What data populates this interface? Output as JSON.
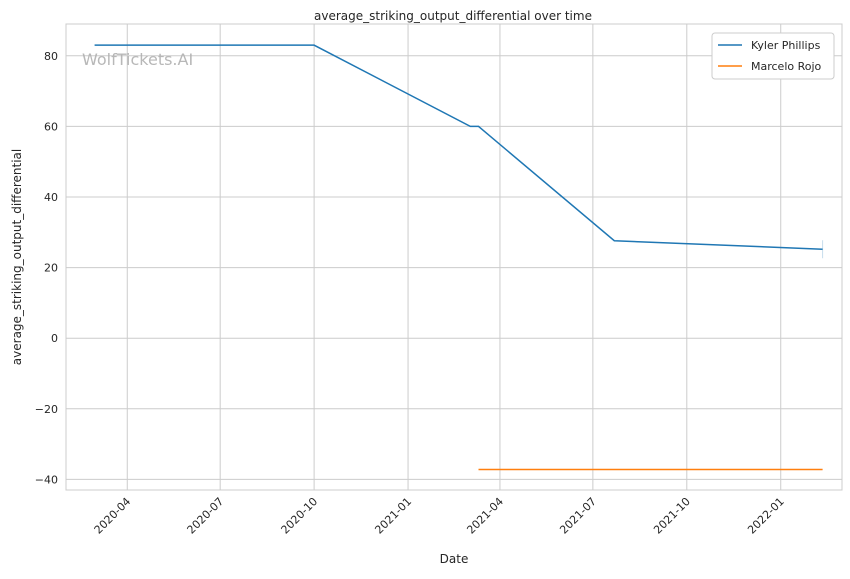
{
  "chart_data": {
    "type": "line",
    "title": "average_striking_output_differential over time",
    "xlabel": "Date",
    "ylabel": "average_striking_output_differential",
    "watermark": "WolfTickets.AI",
    "ylim": [
      -43,
      89
    ],
    "xlim": [
      "2020-02-01",
      "2022-03-02"
    ],
    "yticks": [
      -40,
      -20,
      0,
      20,
      40,
      60,
      80
    ],
    "xticks": [
      "2020-04",
      "2020-07",
      "2020-10",
      "2021-01",
      "2021-04",
      "2021-07",
      "2021-10",
      "2022-01"
    ],
    "grid": true,
    "legend_position": "top-right",
    "series": [
      {
        "name": "Kyler Phillips",
        "color": "#1f77b4",
        "x": [
          "2020-02-29",
          "2020-10-01",
          "2021-03-03",
          "2021-03-11",
          "2021-07-22",
          "2022-02-11"
        ],
        "y": [
          83,
          83,
          60,
          60,
          27.6,
          25.2
        ]
      },
      {
        "name": "Marcelo Rojo",
        "color": "#ff7f0e",
        "x": [
          "2021-03-11",
          "2022-02-11"
        ],
        "y": [
          -37.2,
          -37.2
        ]
      }
    ]
  }
}
